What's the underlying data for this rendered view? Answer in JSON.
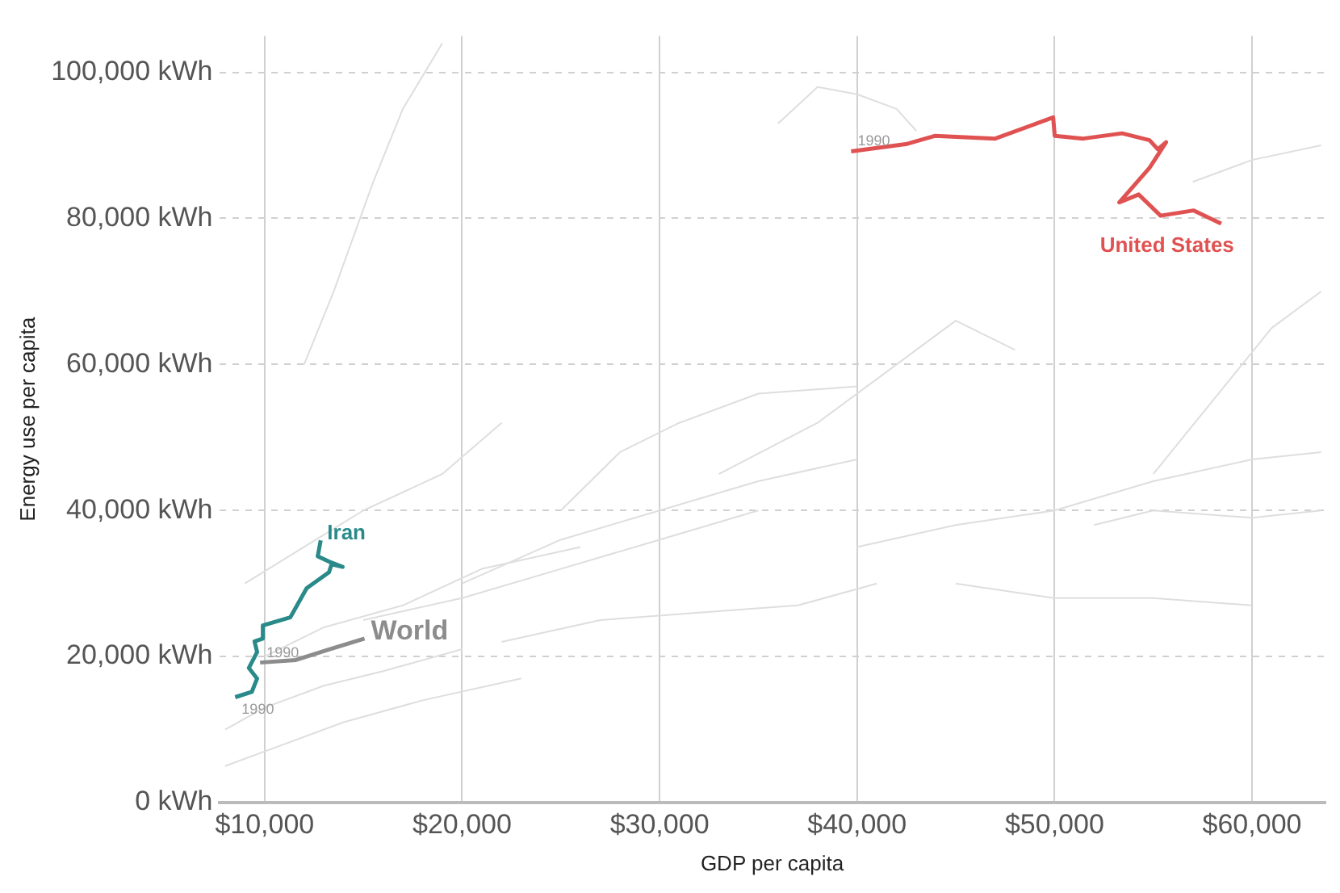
{
  "chart_data": {
    "type": "line",
    "xlabel": "GDP per capita",
    "ylabel": "Energy use per capita",
    "xlim": [
      7700,
      63700
    ],
    "ylim": [
      0,
      105000
    ],
    "xticks": [
      {
        "value": 10000,
        "label": "$10,000"
      },
      {
        "value": 20000,
        "label": "$20,000"
      },
      {
        "value": 30000,
        "label": "$30,000"
      },
      {
        "value": 40000,
        "label": "$40,000"
      },
      {
        "value": 50000,
        "label": "$50,000"
      },
      {
        "value": 60000,
        "label": "$60,000"
      }
    ],
    "yticks": [
      {
        "value": 0,
        "label": "0 kWh"
      },
      {
        "value": 20000,
        "label": "20,000 kWh"
      },
      {
        "value": 40000,
        "label": "40,000 kWh"
      },
      {
        "value": 60000,
        "label": "60,000 kWh"
      },
      {
        "value": 80000,
        "label": "80,000 kWh"
      },
      {
        "value": 100000,
        "label": "100,000 kWh"
      }
    ],
    "grid": true,
    "legend": false,
    "marker": "none",
    "line_style": "solid",
    "annotations": [
      {
        "text": "1990",
        "x": 39700,
        "y": 89180
      },
      {
        "text": "1990",
        "x": 8510,
        "y": 14430
      },
      {
        "text": "1990",
        "x": 9770,
        "y": 19170
      }
    ],
    "series": [
      {
        "color": "#dedede",
        "x": [
          12000,
          13500,
          15500,
          17000,
          19000
        ],
        "values": [
          60000,
          70000,
          85000,
          95000,
          104000
        ]
      },
      {
        "color": "#dedede",
        "x": [
          9000,
          12000,
          15000,
          19000,
          22000
        ],
        "values": [
          30000,
          35000,
          40000,
          45000,
          52000
        ]
      },
      {
        "color": "#dedede",
        "x": [
          8000,
          10000,
          13000,
          16000,
          20000
        ],
        "values": [
          10000,
          13000,
          16000,
          18000,
          21000
        ]
      },
      {
        "color": "#dedede",
        "x": [
          8000,
          11000,
          14000,
          18000,
          23000
        ],
        "values": [
          5000,
          8000,
          11000,
          14000,
          17000
        ]
      },
      {
        "color": "#dedede",
        "x": [
          15000,
          20000,
          25000,
          30000,
          35000
        ],
        "values": [
          25000,
          28000,
          32000,
          36000,
          40000
        ]
      },
      {
        "color": "#dedede",
        "x": [
          20000,
          25000,
          30000,
          35000,
          40000
        ],
        "values": [
          30000,
          36000,
          40000,
          44000,
          47000
        ]
      },
      {
        "color": "#dedede",
        "x": [
          25000,
          28000,
          31000,
          35000,
          40000
        ],
        "values": [
          40000,
          48000,
          52000,
          56000,
          57000
        ]
      },
      {
        "color": "#dedede",
        "x": [
          33000,
          38000,
          42000,
          45000,
          48000
        ],
        "values": [
          45000,
          52000,
          60000,
          66000,
          62000
        ]
      },
      {
        "color": "#dedede",
        "x": [
          40000,
          45000,
          50000,
          55000,
          60000,
          63500
        ],
        "values": [
          35000,
          38000,
          40000,
          44000,
          47000,
          48000
        ]
      },
      {
        "color": "#dedede",
        "x": [
          45000,
          50000,
          55000,
          60000
        ],
        "values": [
          30000,
          28000,
          28000,
          27000
        ]
      },
      {
        "color": "#dedede",
        "x": [
          52000,
          55000,
          60000,
          63500
        ],
        "values": [
          38000,
          40000,
          39000,
          40000
        ]
      },
      {
        "color": "#dedede",
        "x": [
          55000,
          58000,
          61000,
          63500
        ],
        "values": [
          45000,
          55000,
          65000,
          70000
        ]
      },
      {
        "color": "#dedede",
        "x": [
          36000,
          38000,
          40000,
          42000,
          43000
        ],
        "values": [
          93000,
          98000,
          97000,
          95000,
          92000
        ]
      },
      {
        "color": "#dedede",
        "x": [
          57000,
          60000,
          63500
        ],
        "values": [
          85000,
          88000,
          90000
        ]
      },
      {
        "color": "#dedede",
        "x": [
          22000,
          27000,
          32000,
          37000,
          41000
        ],
        "values": [
          22000,
          25000,
          26000,
          27000,
          30000
        ]
      },
      {
        "color": "#dedede",
        "x": [
          10000,
          13000,
          17000,
          21000,
          26000
        ],
        "values": [
          20000,
          24000,
          27000,
          32000,
          35000
        ]
      },
      {
        "name": "World",
        "color": "#8c8c8c",
        "x": [
          9770,
          11580,
          13260,
          15060
        ],
        "values": [
          19170,
          19520,
          20980,
          22450
        ]
      },
      {
        "name": "Iran",
        "color": "#2a8a8a",
        "x": [
          8510,
          9350,
          9620,
          9200,
          9620,
          9490,
          9910,
          9910,
          11300,
          12130,
          13260,
          13390,
          13950,
          13260,
          12690,
          12840
        ],
        "values": [
          14430,
          15150,
          16980,
          18430,
          20610,
          22080,
          22450,
          24260,
          25360,
          29360,
          31540,
          32630,
          32280,
          33000,
          33730,
          35910
        ]
      },
      {
        "name": "United States",
        "color": "#e05252",
        "x": [
          39700,
          42540,
          43930,
          47000,
          49930,
          50010,
          51460,
          53420,
          54810,
          55230,
          55650,
          54810,
          53280,
          54260,
          55370,
          57050,
          58440
        ],
        "values": [
          89180,
          90210,
          91300,
          90930,
          93840,
          91300,
          90930,
          91650,
          90710,
          89460,
          90430,
          86930,
          82190,
          83280,
          80370,
          81090,
          79280
        ]
      }
    ]
  }
}
